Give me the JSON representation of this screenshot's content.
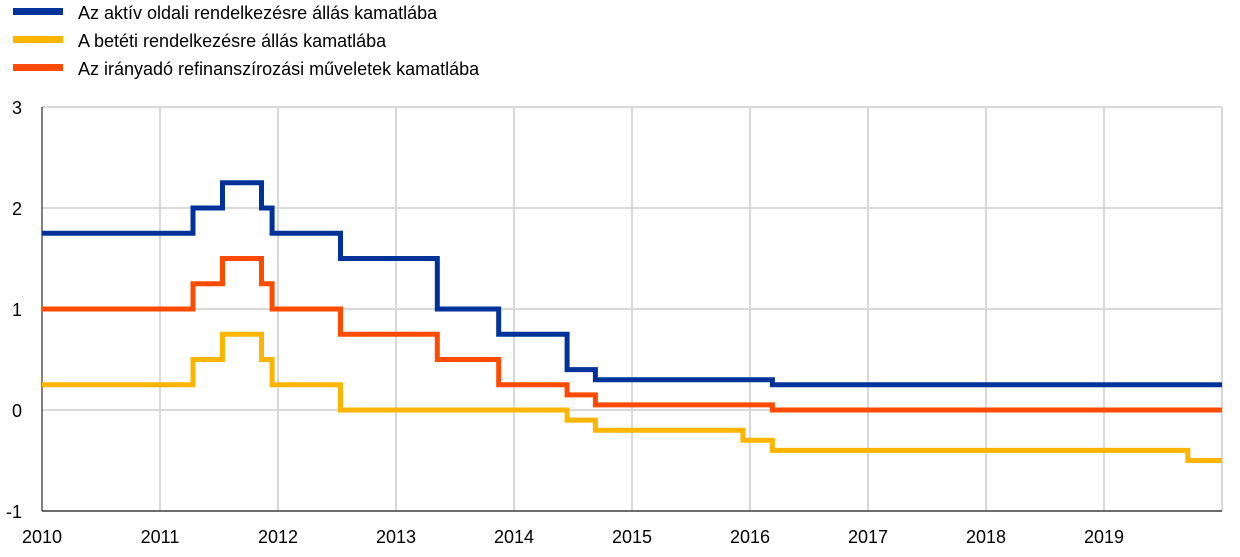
{
  "chart_data": {
    "type": "line",
    "step": true,
    "title": "",
    "xlabel": "",
    "ylabel": "",
    "xlim": [
      2010,
      2020
    ],
    "ylim": [
      -1,
      3
    ],
    "y_ticks": [
      -1,
      0,
      1,
      2,
      3
    ],
    "x_ticks": [
      2010,
      2011,
      2012,
      2013,
      2014,
      2015,
      2016,
      2017,
      2018,
      2019
    ],
    "grid": "vertical and horizontal",
    "legend_position": "top-left",
    "series": [
      {
        "name": "Az aktív oldali rendelkezésre állás kamatlába",
        "color": "#003399",
        "points": [
          [
            2010.0,
            1.75
          ],
          [
            2011.28,
            2.0
          ],
          [
            2011.53,
            2.25
          ],
          [
            2011.86,
            2.0
          ],
          [
            2011.95,
            1.75
          ],
          [
            2012.53,
            1.5
          ],
          [
            2013.35,
            1.0
          ],
          [
            2013.87,
            0.75
          ],
          [
            2014.45,
            0.4
          ],
          [
            2014.69,
            0.3
          ],
          [
            2016.19,
            0.25
          ],
          [
            2020.0,
            0.25
          ]
        ]
      },
      {
        "name": "A betéti rendelkezésre állás kamatlába",
        "color": "#FFB400",
        "points": [
          [
            2010.0,
            0.25
          ],
          [
            2011.28,
            0.5
          ],
          [
            2011.53,
            0.75
          ],
          [
            2011.86,
            0.5
          ],
          [
            2011.95,
            0.25
          ],
          [
            2012.53,
            0.0
          ],
          [
            2014.45,
            -0.1
          ],
          [
            2014.69,
            -0.2
          ],
          [
            2015.94,
            -0.3
          ],
          [
            2016.19,
            -0.4
          ],
          [
            2019.71,
            -0.5
          ],
          [
            2020.0,
            -0.5
          ]
        ]
      },
      {
        "name": "Az irányadó refinanszírozási műveletek kamatlába",
        "color": "#FF4B00",
        "points": [
          [
            2010.0,
            1.0
          ],
          [
            2011.28,
            1.25
          ],
          [
            2011.53,
            1.5
          ],
          [
            2011.86,
            1.25
          ],
          [
            2011.95,
            1.0
          ],
          [
            2012.53,
            0.75
          ],
          [
            2013.35,
            0.5
          ],
          [
            2013.87,
            0.25
          ],
          [
            2014.45,
            0.15
          ],
          [
            2014.69,
            0.05
          ],
          [
            2016.19,
            0.0
          ],
          [
            2020.0,
            0.0
          ]
        ]
      }
    ]
  }
}
